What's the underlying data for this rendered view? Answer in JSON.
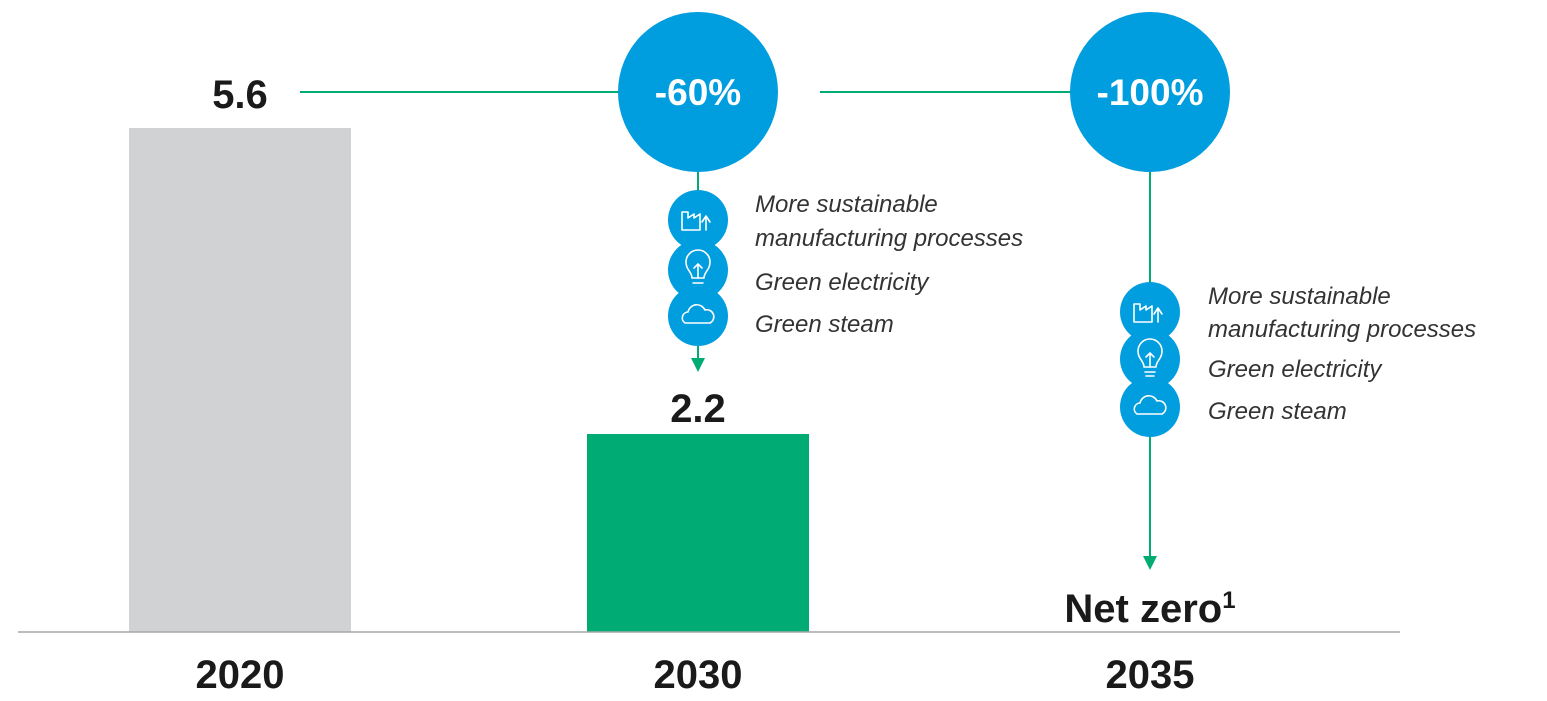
{
  "chart_data": {
    "type": "bar",
    "categories": [
      "2020",
      "2030",
      "2035"
    ],
    "values": [
      5.6,
      2.2,
      0
    ],
    "value_labels": [
      "5.6",
      "2.2",
      "Net zero"
    ],
    "net_zero_footnote": "1",
    "ylim": [
      0,
      5.6
    ],
    "grid": false,
    "bar_colors": [
      "#d1d2d4",
      "#00ac73",
      null
    ],
    "reductions": [
      {
        "label": "-60%",
        "target_category": "2030"
      },
      {
        "label": "-100%",
        "target_category": "2035"
      }
    ],
    "drivers": [
      {
        "category": "2030",
        "items": [
          {
            "icon": "factory-icon",
            "lines": [
              "More sustainable",
              "manufacturing processes"
            ]
          },
          {
            "icon": "lightbulb-icon",
            "lines": [
              "Green electricity"
            ]
          },
          {
            "icon": "cloud-icon",
            "lines": [
              "Green steam"
            ]
          }
        ]
      },
      {
        "category": "2035",
        "items": [
          {
            "icon": "factory-icon",
            "lines": [
              "More sustainable",
              "manufacturing processes"
            ]
          },
          {
            "icon": "lightbulb-icon",
            "lines": [
              "Green electricity"
            ]
          },
          {
            "icon": "cloud-icon",
            "lines": [
              "Green steam"
            ]
          }
        ]
      }
    ]
  },
  "colors": {
    "accent_blue": "#009ddf",
    "connector_green": "#00ac73",
    "bar_gray": "#d1d2d4",
    "bar_green": "#00ac73",
    "axis": "#a6a6a6",
    "text_dark": "#1a1a1a"
  }
}
